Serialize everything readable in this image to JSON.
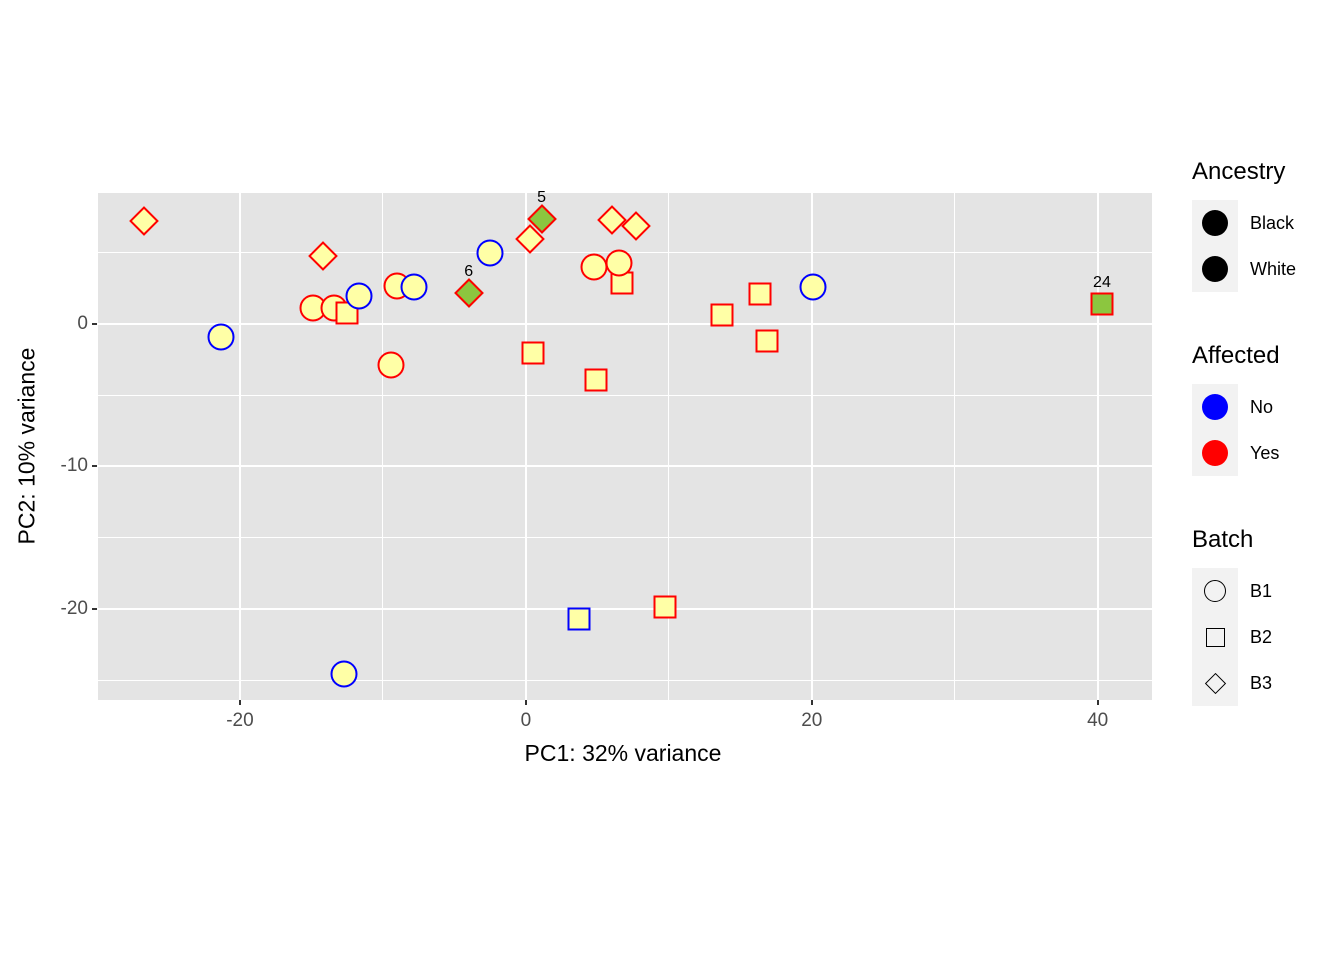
{
  "colors": {
    "red": "#FF0000",
    "blue": "#0000FF",
    "yellow": "#FFFFA6",
    "green": "#8CC63F",
    "panel_bg": "#E4E4E4",
    "grid": "#FFFFFF",
    "tick_text": "#4D4D4D",
    "legend_key_bg": "#F2F2F2"
  },
  "chart_data": {
    "type": "scatter",
    "title": "",
    "xlabel": "PC1: 32% variance",
    "ylabel": "PC2: 10% variance",
    "xlim": [
      -30.0,
      43.8
    ],
    "ylim": [
      -26.4,
      9.2
    ],
    "grid": "on",
    "x_ticks": {
      "values": [
        -20,
        0,
        20,
        40
      ],
      "labels": [
        "-20",
        "0",
        "20",
        "40"
      ]
    },
    "y_ticks": {
      "values": [
        0,
        -10,
        -20
      ],
      "labels": [
        "0",
        "-10",
        "-20"
      ]
    },
    "x_minor": [
      -30,
      -10,
      10,
      30
    ],
    "y_minor": [
      5,
      -5,
      -15,
      -25
    ],
    "legend_position": "right",
    "points": [
      {
        "shape": "diamond",
        "stroke": "red",
        "fill": "yellow",
        "x": -26.7,
        "y": 7.2,
        "label": ""
      },
      {
        "shape": "diamond",
        "stroke": "red",
        "fill": "yellow",
        "x": -14.2,
        "y": 4.8,
        "label": ""
      },
      {
        "shape": "circle",
        "stroke": "blue",
        "fill": "yellow",
        "x": -21.3,
        "y": -0.9,
        "label": ""
      },
      {
        "shape": "circle",
        "stroke": "red",
        "fill": "yellow",
        "x": -14.9,
        "y": 1.1,
        "label": ""
      },
      {
        "shape": "circle",
        "stroke": "red",
        "fill": "yellow",
        "x": -13.4,
        "y": 1.1,
        "label": ""
      },
      {
        "shape": "square",
        "stroke": "red",
        "fill": "yellow",
        "x": -12.5,
        "y": 0.8,
        "label": ""
      },
      {
        "shape": "circle",
        "stroke": "blue",
        "fill": "yellow",
        "x": -11.7,
        "y": 2.0,
        "label": ""
      },
      {
        "shape": "circle",
        "stroke": "red",
        "fill": "yellow",
        "x": -9.0,
        "y": 2.7,
        "label": ""
      },
      {
        "shape": "circle",
        "stroke": "blue",
        "fill": "yellow",
        "x": -7.8,
        "y": 2.6,
        "label": ""
      },
      {
        "shape": "circle",
        "stroke": "red",
        "fill": "yellow",
        "x": -9.4,
        "y": -2.9,
        "label": ""
      },
      {
        "shape": "circle",
        "stroke": "blue",
        "fill": "yellow",
        "x": -2.5,
        "y": 5.0,
        "label": ""
      },
      {
        "shape": "diamond",
        "stroke": "red",
        "fill": "yellow",
        "x": 0.3,
        "y": 6.0,
        "label": ""
      },
      {
        "shape": "diamond",
        "stroke": "red",
        "fill": "green",
        "x": 1.1,
        "y": 7.4,
        "label": "5"
      },
      {
        "shape": "diamond",
        "stroke": "red",
        "fill": "yellow",
        "x": 7.7,
        "y": 6.9,
        "label": ""
      },
      {
        "shape": "diamond",
        "stroke": "red",
        "fill": "yellow",
        "x": 6.0,
        "y": 7.3,
        "label": ""
      },
      {
        "shape": "circle",
        "stroke": "red",
        "fill": "yellow",
        "x": 4.8,
        "y": 4.0,
        "label": ""
      },
      {
        "shape": "square",
        "stroke": "red",
        "fill": "yellow",
        "x": 6.7,
        "y": 2.9,
        "label": ""
      },
      {
        "shape": "circle",
        "stroke": "red",
        "fill": "yellow",
        "x": 6.5,
        "y": 4.3,
        "label": ""
      },
      {
        "shape": "diamond",
        "stroke": "red",
        "fill": "green",
        "x": -4.0,
        "y": 2.2,
        "label": "6"
      },
      {
        "shape": "square",
        "stroke": "red",
        "fill": "yellow",
        "x": 0.5,
        "y": -2.0,
        "label": ""
      },
      {
        "shape": "square",
        "stroke": "red",
        "fill": "yellow",
        "x": 4.9,
        "y": -3.9,
        "label": ""
      },
      {
        "shape": "square",
        "stroke": "red",
        "fill": "yellow",
        "x": 13.7,
        "y": 0.6,
        "label": ""
      },
      {
        "shape": "square",
        "stroke": "red",
        "fill": "yellow",
        "x": 16.4,
        "y": 2.1,
        "label": ""
      },
      {
        "shape": "square",
        "stroke": "red",
        "fill": "yellow",
        "x": 16.9,
        "y": -1.2,
        "label": ""
      },
      {
        "shape": "circle",
        "stroke": "blue",
        "fill": "yellow",
        "x": 20.1,
        "y": 2.6,
        "label": ""
      },
      {
        "shape": "square",
        "stroke": "red",
        "fill": "green",
        "x": 40.3,
        "y": 1.4,
        "label": "24"
      },
      {
        "shape": "square",
        "stroke": "blue",
        "fill": "yellow",
        "x": 3.7,
        "y": -20.7,
        "label": ""
      },
      {
        "shape": "square",
        "stroke": "red",
        "fill": "yellow",
        "x": 9.7,
        "y": -19.9,
        "label": ""
      },
      {
        "shape": "circle",
        "stroke": "blue",
        "fill": "yellow",
        "x": -12.7,
        "y": -24.6,
        "label": ""
      }
    ]
  },
  "legend": {
    "groups": [
      {
        "id": "ancestry",
        "title": "Ancestry",
        "items": [
          {
            "label": "Black",
            "symbol": "circle-filled",
            "color": "#000000"
          },
          {
            "label": "White",
            "symbol": "circle-filled",
            "color": "#000000"
          }
        ]
      },
      {
        "id": "affected",
        "title": "Affected",
        "items": [
          {
            "label": "No",
            "symbol": "circle-filled",
            "color": "#0000FF"
          },
          {
            "label": "Yes",
            "symbol": "circle-filled",
            "color": "#FF0000"
          }
        ]
      },
      {
        "id": "batch",
        "title": "Batch",
        "items": [
          {
            "label": "B1",
            "symbol": "circle-outline",
            "color": "#000000"
          },
          {
            "label": "B2",
            "symbol": "square-outline",
            "color": "#000000"
          },
          {
            "label": "B3",
            "symbol": "diamond-outline",
            "color": "#000000"
          }
        ]
      }
    ]
  }
}
